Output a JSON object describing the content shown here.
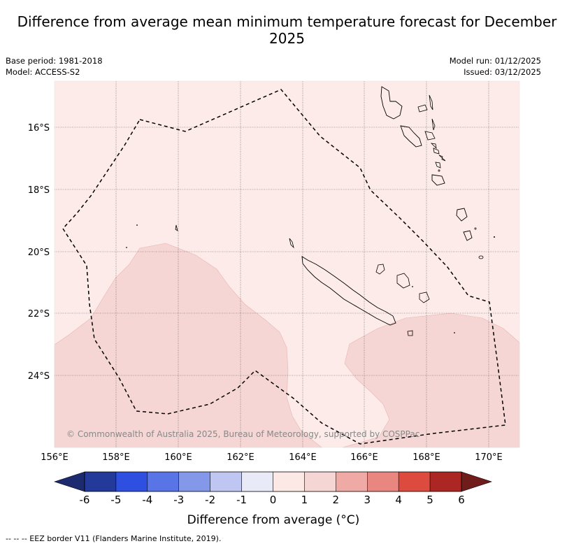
{
  "title": "Difference from average mean minimum temperature forecast for December 2025",
  "base_period": "Base period: 1981-2018",
  "model": "Model: ACCESS-S2",
  "model_run": "Model run: 01/12/2025",
  "issued": "Issued: 03/12/2025",
  "x_ticks": [
    "156°E",
    "158°E",
    "160°E",
    "162°E",
    "164°E",
    "166°E",
    "168°E",
    "170°E"
  ],
  "y_ticks": [
    "16°S",
    "18°S",
    "20°S",
    "22°S",
    "24°S"
  ],
  "copyright": "© Commonwealth of Australia 2025, Bureau of Meteorology, supported by COSPPac",
  "colorbar": {
    "labels": [
      "-6",
      "-5",
      "-4",
      "-3",
      "-2",
      "-1",
      "0",
      "1",
      "2",
      "3",
      "4",
      "5",
      "6"
    ],
    "colors": [
      "#233a9a",
      "#2f4fe0",
      "#5874e6",
      "#8498ea",
      "#bfc6f2",
      "#e8eaf8",
      "#fce9e6",
      "#f5d6d4",
      "#efaaa6",
      "#e8867f",
      "#dd4b3f",
      "#ac2723"
    ],
    "low_extend": "#1c2a70",
    "high_extend": "#6f1c1a",
    "title": "Difference from average (°C)"
  },
  "legend": "-- -- -- EEZ border V11 (Flanders Marine Institute, 2019).",
  "fill_colors": {
    "base": "#fcebe8",
    "warm": "#f5d6d4"
  }
}
